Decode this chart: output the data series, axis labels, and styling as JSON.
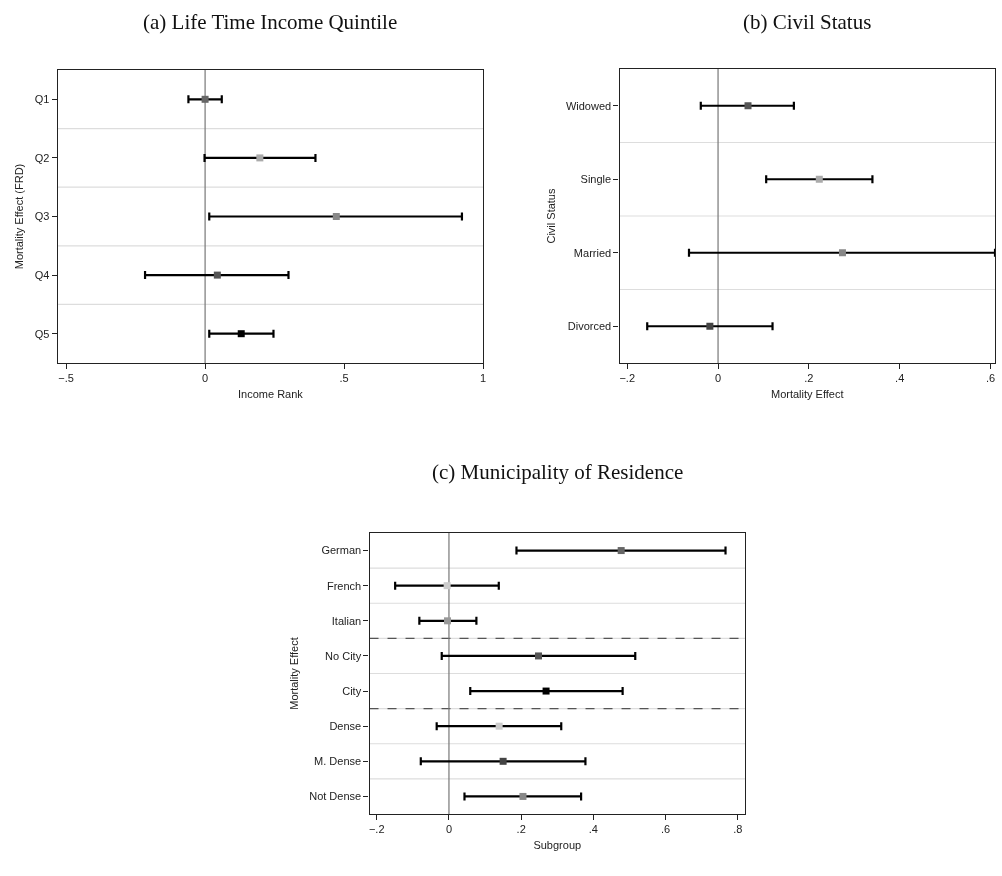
{
  "chart_data": [
    {
      "type": "scatter",
      "orientation": "horizontal",
      "title": "(a) Life Time Income Quintile",
      "xlabel": "Income Rank",
      "ylabel": "Mortality Effect (FRD)",
      "marker": "square",
      "grid": "y",
      "categories": [
        "Q1",
        "Q2",
        "Q3",
        "Q4",
        "Q5"
      ],
      "values": [
        0.0,
        0.197,
        0.472,
        0.044,
        0.13
      ],
      "errors": [
        [
          -0.06,
          0.06
        ],
        [
          -0.002,
          0.397
        ],
        [
          0.015,
          0.924
        ],
        [
          -0.216,
          0.3
        ],
        [
          0.015,
          0.246
        ]
      ],
      "colors": [
        "#666666",
        "#aaaaaa",
        "#888888",
        "#555555",
        "#000000"
      ],
      "xlim": [
        -0.53,
        1.0
      ],
      "xticks": [
        {
          "value": -0.5,
          "label": "−.5"
        },
        0,
        {
          "value": 0.5,
          "label": ".5"
        },
        1
      ],
      "ref_lines": [
        {
          "axis": "x",
          "value": 0,
          "color": "#777777"
        }
      ]
    },
    {
      "type": "scatter",
      "orientation": "horizontal",
      "title": "(b) Civil Status",
      "xlabel": "Mortality Effect",
      "ylabel": "Civil Status",
      "marker": "square",
      "grid": "y",
      "categories": [
        "Widowed",
        "Single",
        "Married",
        "Divorced"
      ],
      "values": [
        0.066,
        0.223,
        0.274,
        -0.018
      ],
      "errors": [
        [
          -0.038,
          0.167
        ],
        [
          0.106,
          0.34
        ],
        [
          -0.064,
          0.61
        ],
        [
          -0.156,
          0.12
        ]
      ],
      "colors": [
        "#555555",
        "#aaaaaa",
        "#888888",
        "#444444"
      ],
      "xlim": [
        -0.217,
        0.61
      ],
      "xticks": [
        {
          "value": -0.2,
          "label": "−.2"
        },
        0,
        {
          "value": 0.2,
          "label": ".2"
        },
        {
          "value": 0.4,
          "label": ".4"
        },
        {
          "value": 0.6,
          "label": ".6"
        }
      ],
      "ref_lines": [
        {
          "axis": "x",
          "value": 0,
          "color": "#777777"
        }
      ]
    },
    {
      "type": "scatter",
      "orientation": "horizontal",
      "title": "(c) Municipality of Residence",
      "xlabel": "Subgroup",
      "ylabel": "Mortality Effect",
      "marker": "square",
      "grid": "y",
      "categories": [
        "German",
        "French",
        "Italian",
        "No City",
        "City",
        "Dense",
        "M. Dense",
        "Not Dense"
      ],
      "values": [
        0.477,
        -0.005,
        -0.004,
        0.248,
        0.269,
        0.139,
        0.15,
        0.205
      ],
      "errors": [
        [
          0.187,
          0.766
        ],
        [
          -0.149,
          0.138
        ],
        [
          -0.082,
          0.076
        ],
        [
          -0.02,
          0.516
        ],
        [
          0.059,
          0.481
        ],
        [
          -0.034,
          0.311
        ],
        [
          -0.078,
          0.378
        ],
        [
          0.043,
          0.366
        ]
      ],
      "colors": [
        "#666666",
        "#cccccc",
        "#999999",
        "#555555",
        "#000000",
        "#cccccc",
        "#444444",
        "#888888"
      ],
      "xlim": [
        -0.22,
        0.82
      ],
      "xticks": [
        {
          "value": -0.2,
          "label": "−.2"
        },
        0,
        {
          "value": 0.2,
          "label": ".2"
        },
        {
          "value": 0.4,
          "label": ".4"
        },
        {
          "value": 0.6,
          "label": ".6"
        },
        {
          "value": 0.8,
          "label": ".8"
        }
      ],
      "ref_lines": [
        {
          "axis": "x",
          "value": 0,
          "color": "#777777"
        }
      ]
    }
  ]
}
